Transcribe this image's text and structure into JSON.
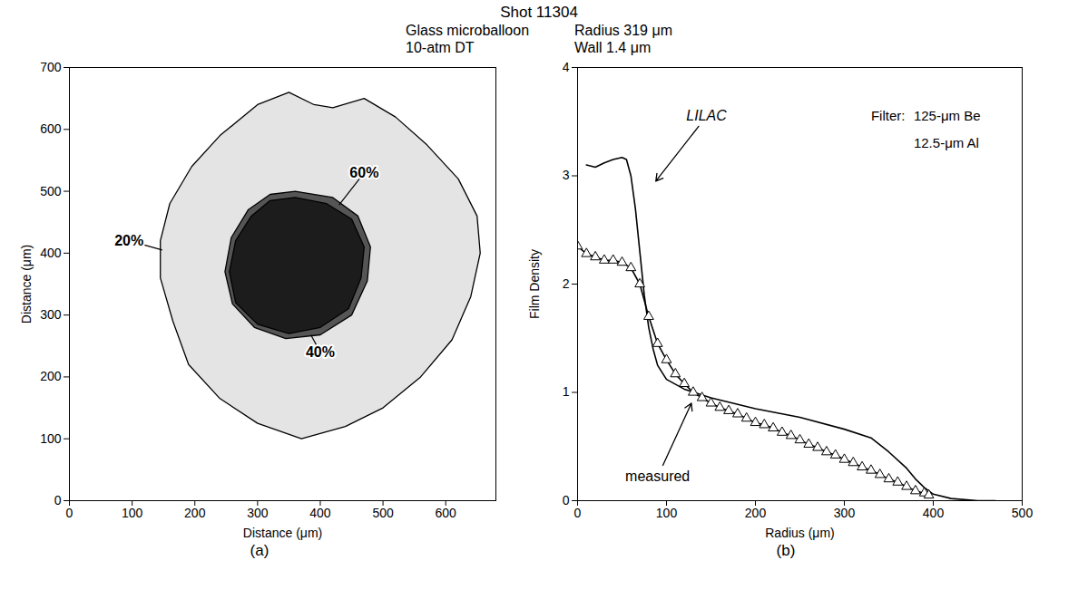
{
  "header": {
    "title": "Shot 11304",
    "lines": [
      [
        "Glass microballoon",
        "Radius 319 μm"
      ],
      [
        "10-atm DT",
        "Wall 1.4 μm"
      ]
    ]
  },
  "chart_data": [
    {
      "type": "contour",
      "panel": "(a)",
      "x_label": "Distance (μm)",
      "y_label": "Distance (μm)",
      "xlim": [
        0,
        680
      ],
      "xticks": [
        0,
        100,
        200,
        300,
        400,
        500,
        600
      ],
      "ylim": [
        0,
        700
      ],
      "yticks": [
        0,
        100,
        200,
        300,
        400,
        500,
        600,
        700
      ],
      "series": [
        {
          "name": "20%",
          "color": "#e4e4e4",
          "label_at": [
            95,
            420
          ],
          "leader_to": [
            148,
            405
          ],
          "x": [
            420,
            470,
            520,
            570,
            620,
            650,
            655,
            640,
            610,
            560,
            500,
            440,
            370,
            300,
            240,
            190,
            165,
            145,
            145,
            160,
            195,
            240,
            300,
            350,
            390
          ],
          "y": [
            635,
            650,
            620,
            575,
            520,
            460,
            400,
            330,
            260,
            200,
            150,
            120,
            100,
            125,
            165,
            220,
            290,
            360,
            420,
            480,
            540,
            590,
            640,
            660,
            640
          ]
        },
        {
          "name": "40%",
          "color": "#555555",
          "label_at": [
            400,
            240
          ],
          "leader_to": [
            385,
            268
          ],
          "x": [
            360,
            420,
            460,
            480,
            475,
            450,
            400,
            345,
            295,
            260,
            248,
            258,
            285,
            320
          ],
          "y": [
            500,
            490,
            460,
            410,
            355,
            300,
            268,
            262,
            280,
            318,
            370,
            425,
            470,
            495
          ]
        },
        {
          "name": "60%",
          "color": "#1c1c1c",
          "label_at": [
            470,
            530
          ],
          "leader_to": [
            430,
            478
          ],
          "x": [
            360,
            410,
            450,
            470,
            465,
            445,
            400,
            350,
            300,
            265,
            255,
            265,
            290,
            320
          ],
          "y": [
            490,
            480,
            455,
            410,
            360,
            310,
            280,
            270,
            285,
            320,
            370,
            420,
            460,
            485
          ]
        }
      ]
    },
    {
      "type": "line",
      "panel": "(b)",
      "x_label": "Radius (μm)",
      "y_label": "Film Density",
      "xlim": [
        0,
        500
      ],
      "xticks": [
        0,
        100,
        200,
        300,
        400,
        500
      ],
      "ylim": [
        0,
        4
      ],
      "yticks": [
        0,
        1,
        2,
        3,
        4
      ],
      "annotations": [
        {
          "text": "Filter:",
          "x": 330,
          "y": 3.55
        },
        {
          "text": "125-μm Be",
          "x": 378,
          "y": 3.55
        },
        {
          "text": "12.5-μm Al",
          "x": 378,
          "y": 3.3
        }
      ],
      "series": [
        {
          "name": "LILAC",
          "color": "#000000",
          "line_style": "solid",
          "marker": "none",
          "label_at": [
            145,
            3.55
          ],
          "leader_to": [
            88,
            2.95
          ],
          "x": [
            10,
            20,
            30,
            40,
            50,
            55,
            60,
            65,
            70,
            75,
            80,
            85,
            90,
            100,
            120,
            150,
            200,
            250,
            300,
            330,
            350,
            370,
            380,
            390,
            400,
            420,
            450,
            470
          ],
          "y": [
            3.1,
            3.08,
            3.12,
            3.15,
            3.17,
            3.15,
            3.0,
            2.7,
            2.3,
            1.9,
            1.6,
            1.4,
            1.25,
            1.12,
            1.03,
            0.95,
            0.85,
            0.77,
            0.66,
            0.58,
            0.45,
            0.3,
            0.2,
            0.12,
            0.06,
            0.02,
            0.0,
            0.0
          ]
        },
        {
          "name": "measured",
          "color": "#000000",
          "line_style": "solid",
          "marker": "triangle",
          "label_at": [
            90,
            0.22
          ],
          "leader_to": [
            128,
            0.9
          ],
          "x": [
            0,
            10,
            20,
            30,
            40,
            50,
            60,
            70,
            80,
            90,
            100,
            110,
            120,
            130,
            140,
            150,
            160,
            170,
            180,
            190,
            200,
            210,
            220,
            230,
            240,
            250,
            260,
            270,
            280,
            290,
            300,
            310,
            320,
            330,
            340,
            350,
            360,
            370,
            380,
            390,
            395
          ],
          "y": [
            2.35,
            2.28,
            2.25,
            2.22,
            2.22,
            2.2,
            2.15,
            2.0,
            1.7,
            1.45,
            1.3,
            1.17,
            1.08,
            1.0,
            0.95,
            0.9,
            0.86,
            0.83,
            0.8,
            0.76,
            0.72,
            0.7,
            0.67,
            0.63,
            0.6,
            0.56,
            0.52,
            0.49,
            0.45,
            0.42,
            0.38,
            0.35,
            0.31,
            0.28,
            0.24,
            0.2,
            0.17,
            0.13,
            0.09,
            0.07,
            0.05
          ]
        }
      ]
    }
  ]
}
